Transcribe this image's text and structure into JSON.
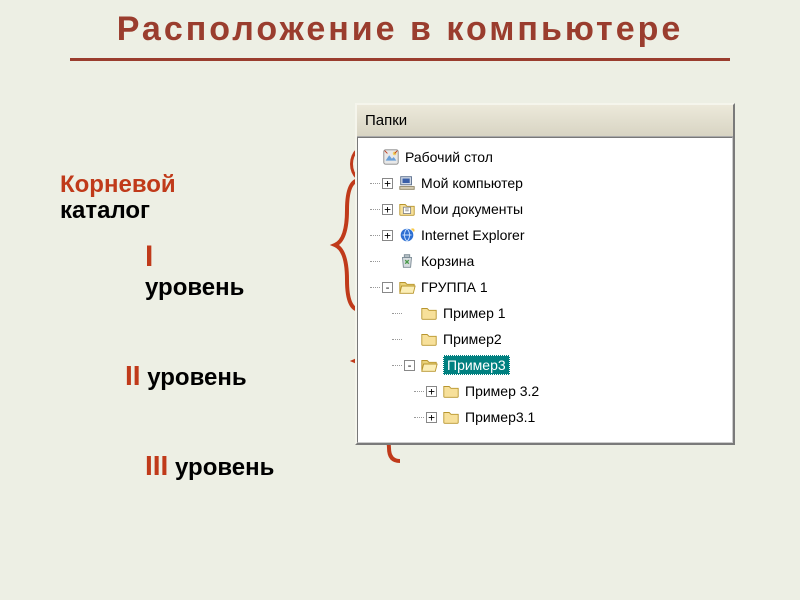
{
  "title": "Расположение  в  компьютере",
  "annotations": {
    "root_l1": "Корневой",
    "root_l2": "каталог",
    "level1_num": "I",
    "level1_txt": "уровень",
    "level2_num": "II",
    "level2_txt": "уровень",
    "level3_num": "III",
    "level3_txt": "уровень"
  },
  "panel": {
    "header": "Папки"
  },
  "tree": {
    "root": {
      "icon": "desktop",
      "label": "Рабочий стол",
      "expander": "none",
      "indent": 0
    },
    "items": [
      {
        "icon": "mycomputer",
        "label": "Мой компьютер",
        "expander": "+",
        "indent": 1,
        "selected": false
      },
      {
        "icon": "mydocs",
        "label": "Мои документы",
        "expander": "+",
        "indent": 1,
        "selected": false
      },
      {
        "icon": "ie",
        "label": "Internet Explorer",
        "expander": "+",
        "indent": 1,
        "selected": false
      },
      {
        "icon": "recycle",
        "label": "Корзина",
        "expander": "none",
        "indent": 1,
        "selected": false
      },
      {
        "icon": "folder-open",
        "label": "ГРУППА 1",
        "expander": "-",
        "indent": 1,
        "selected": false
      },
      {
        "icon": "folder",
        "label": "Пример 1",
        "expander": "none",
        "indent": 2,
        "selected": false
      },
      {
        "icon": "folder",
        "label": "Пример2",
        "expander": "none",
        "indent": 2,
        "selected": false
      },
      {
        "icon": "folder-open",
        "label": "Пример3",
        "expander": "-",
        "indent": 2,
        "selected": true
      },
      {
        "icon": "folder",
        "label": "Пример 3.2",
        "expander": "+",
        "indent": 3,
        "selected": false
      },
      {
        "icon": "folder",
        "label": "Пример3.1",
        "expander": "+",
        "indent": 3,
        "selected": false
      }
    ]
  },
  "colors": {
    "title": "#9a3d2e",
    "accent": "#c03a1a",
    "selection_bg": "#008080",
    "page_bg": "#edefe4",
    "panel_bg": "#ede9dc",
    "tree_bg": "#ffffff"
  }
}
